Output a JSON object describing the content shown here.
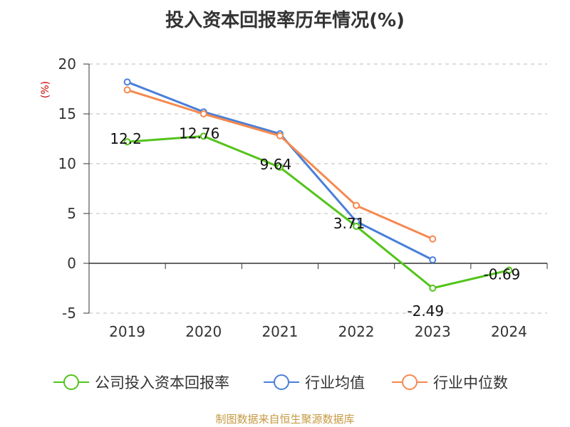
{
  "chart_data": {
    "type": "line",
    "title": "投入资本回报率历年情况(%)",
    "ylabel": "(%)",
    "categories": [
      "2019",
      "2020",
      "2021",
      "2022",
      "2023",
      "2024"
    ],
    "ylim": [
      -5,
      20
    ],
    "yticks": [
      -5,
      0,
      5,
      10,
      15,
      20
    ],
    "grid": true,
    "legend_position": "bottom",
    "series": [
      {
        "name": "公司投入资本回报率",
        "color": "#52c41a",
        "values": [
          12.2,
          12.76,
          9.64,
          3.71,
          -2.49,
          -0.69
        ],
        "labels": [
          "12.2",
          "12.76",
          "9.64",
          "3.71",
          "-2.49",
          "-0.69"
        ]
      },
      {
        "name": "行业均值",
        "color": "#4a7fd8",
        "values": [
          18.2,
          15.2,
          13.0,
          4.2,
          0.35,
          null
        ]
      },
      {
        "name": "行业中位数",
        "color": "#f5894f",
        "values": [
          17.4,
          15.0,
          12.8,
          5.8,
          2.45,
          null
        ]
      }
    ]
  },
  "source": "制图数据来自恒生聚源数据库"
}
